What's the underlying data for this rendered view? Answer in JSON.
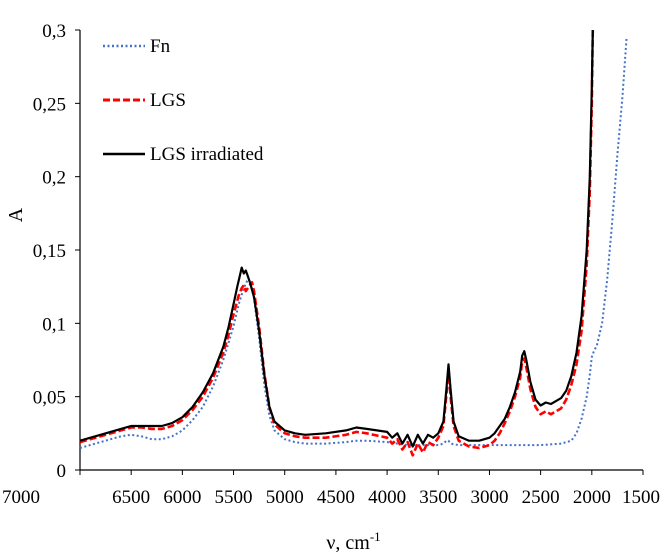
{
  "chart_data": {
    "type": "line",
    "title": "",
    "xlabel": "ν, cm",
    "xlabel_superscript": "-1",
    "ylabel": "A",
    "xlim": [
      7000,
      1500
    ],
    "ylim": [
      0,
      0.3
    ],
    "x_reversed": true,
    "grid": false,
    "legend_position": "top-left",
    "x_ticks": [
      7000,
      6500,
      6000,
      5500,
      5000,
      4500,
      4000,
      3500,
      3000,
      2500,
      2000,
      1500
    ],
    "x_tick_labels": [
      "7000",
      "6500",
      "6000",
      "5500",
      "5000",
      "4500",
      "4000",
      "3500",
      "3000",
      "2500",
      "2000",
      "1500"
    ],
    "y_ticks": [
      0,
      0.05,
      0.1,
      0.15,
      0.2,
      0.25,
      0.3
    ],
    "y_tick_labels": [
      "0",
      "0,05",
      "0,1",
      "0,15",
      "0,2",
      "0,25",
      "0,3"
    ],
    "series": [
      {
        "name": "Fn",
        "color": "#4472c4",
        "style": "dotted",
        "points": [
          [
            7000,
            0.015
          ],
          [
            6800,
            0.019
          ],
          [
            6600,
            0.023
          ],
          [
            6500,
            0.024
          ],
          [
            6400,
            0.023
          ],
          [
            6300,
            0.021
          ],
          [
            6200,
            0.021
          ],
          [
            6100,
            0.023
          ],
          [
            6000,
            0.027
          ],
          [
            5900,
            0.034
          ],
          [
            5800,
            0.043
          ],
          [
            5700,
            0.057
          ],
          [
            5600,
            0.075
          ],
          [
            5500,
            0.098
          ],
          [
            5450,
            0.113
          ],
          [
            5400,
            0.124
          ],
          [
            5360,
            0.13
          ],
          [
            5330,
            0.128
          ],
          [
            5300,
            0.117
          ],
          [
            5250,
            0.09
          ],
          [
            5200,
            0.058
          ],
          [
            5150,
            0.037
          ],
          [
            5100,
            0.027
          ],
          [
            5000,
            0.021
          ],
          [
            4900,
            0.019
          ],
          [
            4800,
            0.018
          ],
          [
            4600,
            0.018
          ],
          [
            4400,
            0.019
          ],
          [
            4300,
            0.02
          ],
          [
            4200,
            0.02
          ],
          [
            4000,
            0.019
          ],
          [
            3900,
            0.018
          ],
          [
            3800,
            0.017
          ],
          [
            3700,
            0.017
          ],
          [
            3600,
            0.017
          ],
          [
            3500,
            0.017
          ],
          [
            3450,
            0.018
          ],
          [
            3420,
            0.02
          ],
          [
            3400,
            0.02
          ],
          [
            3380,
            0.018
          ],
          [
            3300,
            0.017
          ],
          [
            3100,
            0.017
          ],
          [
            2900,
            0.017
          ],
          [
            2700,
            0.017
          ],
          [
            2500,
            0.017
          ],
          [
            2300,
            0.018
          ],
          [
            2200,
            0.02
          ],
          [
            2150,
            0.025
          ],
          [
            2100,
            0.035
          ],
          [
            2050,
            0.05
          ],
          [
            2020,
            0.065
          ],
          [
            2000,
            0.077
          ],
          [
            1980,
            0.081
          ],
          [
            1950,
            0.085
          ],
          [
            1900,
            0.1
          ],
          [
            1850,
            0.13
          ],
          [
            1800,
            0.17
          ],
          [
            1750,
            0.215
          ],
          [
            1700,
            0.255
          ],
          [
            1660,
            0.295
          ]
        ]
      },
      {
        "name": "LGS",
        "color": "#ff0000",
        "style": "dashed",
        "points": [
          [
            7000,
            0.019
          ],
          [
            6800,
            0.023
          ],
          [
            6600,
            0.027
          ],
          [
            6500,
            0.029
          ],
          [
            6400,
            0.029
          ],
          [
            6300,
            0.028
          ],
          [
            6200,
            0.028
          ],
          [
            6100,
            0.03
          ],
          [
            6000,
            0.034
          ],
          [
            5900,
            0.041
          ],
          [
            5800,
            0.05
          ],
          [
            5700,
            0.063
          ],
          [
            5600,
            0.08
          ],
          [
            5550,
            0.092
          ],
          [
            5500,
            0.106
          ],
          [
            5450,
            0.119
          ],
          [
            5420,
            0.124
          ],
          [
            5400,
            0.126
          ],
          [
            5380,
            0.122
          ],
          [
            5350,
            0.125
          ],
          [
            5320,
            0.128
          ],
          [
            5300,
            0.122
          ],
          [
            5250,
            0.098
          ],
          [
            5200,
            0.066
          ],
          [
            5150,
            0.043
          ],
          [
            5100,
            0.031
          ],
          [
            5000,
            0.025
          ],
          [
            4900,
            0.023
          ],
          [
            4800,
            0.022
          ],
          [
            4600,
            0.022
          ],
          [
            4400,
            0.024
          ],
          [
            4300,
            0.026
          ],
          [
            4200,
            0.025
          ],
          [
            4000,
            0.022
          ],
          [
            3950,
            0.018
          ],
          [
            3900,
            0.021
          ],
          [
            3850,
            0.014
          ],
          [
            3800,
            0.019
          ],
          [
            3750,
            0.01
          ],
          [
            3700,
            0.018
          ],
          [
            3650,
            0.012
          ],
          [
            3600,
            0.019
          ],
          [
            3550,
            0.017
          ],
          [
            3500,
            0.022
          ],
          [
            3450,
            0.03
          ],
          [
            3420,
            0.052
          ],
          [
            3400,
            0.068
          ],
          [
            3380,
            0.05
          ],
          [
            3350,
            0.03
          ],
          [
            3300,
            0.02
          ],
          [
            3200,
            0.016
          ],
          [
            3100,
            0.015
          ],
          [
            3000,
            0.017
          ],
          [
            2950,
            0.02
          ],
          [
            2900,
            0.025
          ],
          [
            2850,
            0.032
          ],
          [
            2800,
            0.04
          ],
          [
            2750,
            0.05
          ],
          [
            2700,
            0.063
          ],
          [
            2680,
            0.074
          ],
          [
            2660,
            0.076
          ],
          [
            2640,
            0.07
          ],
          [
            2600,
            0.055
          ],
          [
            2550,
            0.043
          ],
          [
            2500,
            0.038
          ],
          [
            2450,
            0.04
          ],
          [
            2400,
            0.038
          ],
          [
            2350,
            0.04
          ],
          [
            2300,
            0.042
          ],
          [
            2250,
            0.048
          ],
          [
            2200,
            0.058
          ],
          [
            2150,
            0.072
          ],
          [
            2100,
            0.095
          ],
          [
            2050,
            0.14
          ],
          [
            2020,
            0.19
          ],
          [
            2000,
            0.25
          ],
          [
            1990,
            0.3
          ]
        ]
      },
      {
        "name": "LGS irradiated",
        "color": "#000000",
        "style": "solid",
        "points": [
          [
            7000,
            0.02
          ],
          [
            6800,
            0.024
          ],
          [
            6600,
            0.028
          ],
          [
            6500,
            0.03
          ],
          [
            6400,
            0.03
          ],
          [
            6300,
            0.03
          ],
          [
            6200,
            0.03
          ],
          [
            6100,
            0.032
          ],
          [
            6000,
            0.036
          ],
          [
            5900,
            0.043
          ],
          [
            5800,
            0.053
          ],
          [
            5700,
            0.066
          ],
          [
            5600,
            0.084
          ],
          [
            5550,
            0.097
          ],
          [
            5500,
            0.113
          ],
          [
            5460,
            0.126
          ],
          [
            5440,
            0.132
          ],
          [
            5420,
            0.138
          ],
          [
            5400,
            0.134
          ],
          [
            5380,
            0.136
          ],
          [
            5360,
            0.132
          ],
          [
            5340,
            0.128
          ],
          [
            5300,
            0.118
          ],
          [
            5250,
            0.095
          ],
          [
            5200,
            0.065
          ],
          [
            5150,
            0.043
          ],
          [
            5100,
            0.033
          ],
          [
            5000,
            0.027
          ],
          [
            4900,
            0.025
          ],
          [
            4800,
            0.024
          ],
          [
            4600,
            0.025
          ],
          [
            4400,
            0.027
          ],
          [
            4300,
            0.029
          ],
          [
            4200,
            0.028
          ],
          [
            4000,
            0.026
          ],
          [
            3950,
            0.022
          ],
          [
            3900,
            0.025
          ],
          [
            3850,
            0.018
          ],
          [
            3800,
            0.024
          ],
          [
            3750,
            0.016
          ],
          [
            3700,
            0.024
          ],
          [
            3650,
            0.018
          ],
          [
            3600,
            0.024
          ],
          [
            3550,
            0.022
          ],
          [
            3500,
            0.025
          ],
          [
            3450,
            0.033
          ],
          [
            3420,
            0.056
          ],
          [
            3400,
            0.072
          ],
          [
            3380,
            0.055
          ],
          [
            3350,
            0.033
          ],
          [
            3300,
            0.023
          ],
          [
            3200,
            0.02
          ],
          [
            3100,
            0.02
          ],
          [
            3000,
            0.022
          ],
          [
            2950,
            0.025
          ],
          [
            2900,
            0.03
          ],
          [
            2850,
            0.035
          ],
          [
            2800,
            0.043
          ],
          [
            2750,
            0.053
          ],
          [
            2700,
            0.067
          ],
          [
            2680,
            0.078
          ],
          [
            2660,
            0.081
          ],
          [
            2640,
            0.075
          ],
          [
            2600,
            0.06
          ],
          [
            2550,
            0.048
          ],
          [
            2500,
            0.044
          ],
          [
            2450,
            0.046
          ],
          [
            2400,
            0.045
          ],
          [
            2350,
            0.047
          ],
          [
            2300,
            0.049
          ],
          [
            2250,
            0.054
          ],
          [
            2200,
            0.064
          ],
          [
            2150,
            0.08
          ],
          [
            2100,
            0.105
          ],
          [
            2050,
            0.15
          ],
          [
            2020,
            0.2
          ],
          [
            2000,
            0.26
          ],
          [
            1990,
            0.3
          ]
        ]
      }
    ]
  }
}
